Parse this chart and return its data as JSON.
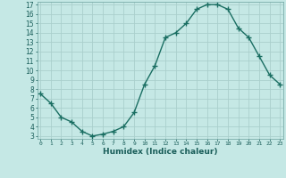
{
  "x": [
    0,
    1,
    2,
    3,
    4,
    5,
    6,
    7,
    8,
    9,
    10,
    11,
    12,
    13,
    14,
    15,
    16,
    17,
    18,
    19,
    20,
    21,
    22,
    23
  ],
  "y": [
    7.5,
    6.5,
    5.0,
    4.5,
    3.5,
    3.0,
    3.2,
    3.5,
    4.0,
    5.5,
    8.5,
    10.5,
    13.5,
    14.0,
    15.0,
    16.5,
    17.0,
    17.0,
    16.5,
    14.5,
    13.5,
    11.5,
    9.5,
    8.5
  ],
  "xlabel": "Humidex (Indice chaleur)",
  "line_color": "#1a6e62",
  "marker_color": "#1a6e62",
  "bg_color": "#c5e8e5",
  "grid_color": "#aacfcc",
  "axis_color": "#7aadaa",
  "text_color": "#1a5e5a",
  "ylim_min": 3,
  "ylim_max": 17,
  "xlim_min": 0,
  "xlim_max": 23,
  "yticks": [
    3,
    4,
    5,
    6,
    7,
    8,
    9,
    10,
    11,
    12,
    13,
    14,
    15,
    16,
    17
  ],
  "xticks": [
    0,
    1,
    2,
    3,
    4,
    5,
    6,
    7,
    8,
    9,
    10,
    11,
    12,
    13,
    14,
    15,
    16,
    17,
    18,
    19,
    20,
    21,
    22,
    23
  ]
}
